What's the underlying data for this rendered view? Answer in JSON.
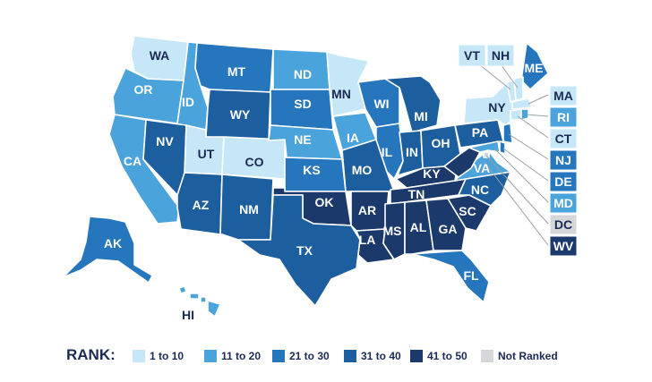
{
  "colors": {
    "1 to 10": "#c6e7f7",
    "11 to 20": "#4ba3dc",
    "21 to 30": "#2676bd",
    "31 to 40": "#1d5f9e",
    "41 to 50": "#1b3a6b",
    "Not Ranked": "#d4d6d9"
  },
  "legend": {
    "title": "RANK:",
    "items": [
      {
        "label": "1 to 10",
        "key": "1 to 10"
      },
      {
        "label": "11 to 20",
        "key": "11 to 20"
      },
      {
        "label": "21 to 30",
        "key": "21 to 30"
      },
      {
        "label": "31 to 40",
        "key": "31 to 40"
      },
      {
        "label": "41 to 50",
        "key": "41 to 50"
      },
      {
        "label": "Not Ranked",
        "key": "Not Ranked"
      }
    ]
  },
  "states": {
    "WA": "1 to 10",
    "OR": "11 to 20",
    "CA": "11 to 20",
    "NV": "31 to 40",
    "ID": "11 to 20",
    "MT": "21 to 30",
    "WY": "31 to 40",
    "UT": "1 to 10",
    "CO": "1 to 10",
    "AZ": "31 to 40",
    "NM": "31 to 40",
    "ND": "11 to 20",
    "SD": "21 to 30",
    "NE": "11 to 20",
    "KS": "21 to 30",
    "OK": "41 to 50",
    "TX": "31 to 40",
    "MN": "1 to 10",
    "IA": "11 to 20",
    "MO": "31 to 40",
    "AR": "41 to 50",
    "LA": "41 to 50",
    "WI": "21 to 30",
    "IL": "21 to 30",
    "MI": "31 to 40",
    "IN": "31 to 40",
    "OH": "31 to 40",
    "KY": "41 to 50",
    "TN": "41 to 50",
    "MS": "41 to 50",
    "AL": "41 to 50",
    "GA": "41 to 50",
    "FL": "21 to 30",
    "SC": "41 to 50",
    "NC": "31 to 40",
    "VA": "11 to 20",
    "WV": "41 to 50",
    "PA": "31 to 40",
    "NY": "1 to 10",
    "ME": "21 to 30",
    "AK": "21 to 30",
    "HI": "11 to 20",
    "VT": "1 to 10",
    "NH": "1 to 10",
    "MA": "1 to 10",
    "RI": "11 to 20",
    "CT": "1 to 10",
    "NJ": "21 to 30",
    "DE": "21 to 30",
    "MD": "11 to 20",
    "DC": "Not Ranked"
  }
}
